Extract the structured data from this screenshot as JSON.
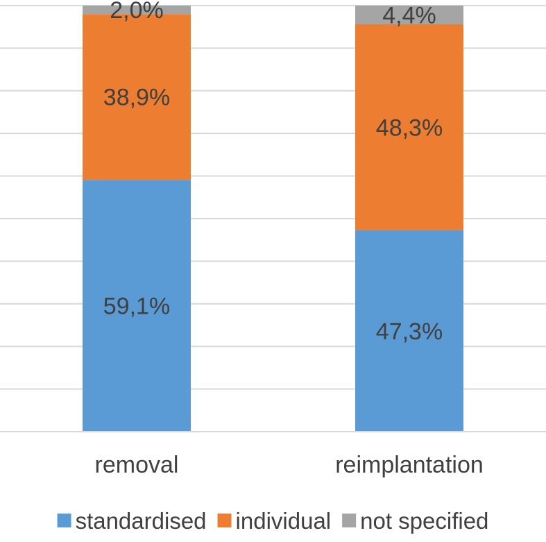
{
  "chart_data": {
    "type": "bar",
    "stacked": true,
    "percent_stacked": true,
    "categories": [
      "removal",
      "reimplantation"
    ],
    "series": [
      {
        "name": "standardised",
        "values": [
          59.1,
          47.3
        ],
        "labels": [
          "59,1%",
          "47,3%"
        ],
        "color": "#5b9bd5"
      },
      {
        "name": "individual",
        "values": [
          38.9,
          48.3
        ],
        "labels": [
          "38,9%",
          "48,3%"
        ],
        "color": "#ed7d31"
      },
      {
        "name": "not specified",
        "values": [
          2.0,
          4.4
        ],
        "labels": [
          "2,0%",
          "4,4%"
        ],
        "color": "#a5a5a5"
      }
    ],
    "ylim": [
      0,
      100
    ],
    "grid": true,
    "legend_position": "bottom",
    "title": "",
    "xlabel": "",
    "ylabel": ""
  }
}
